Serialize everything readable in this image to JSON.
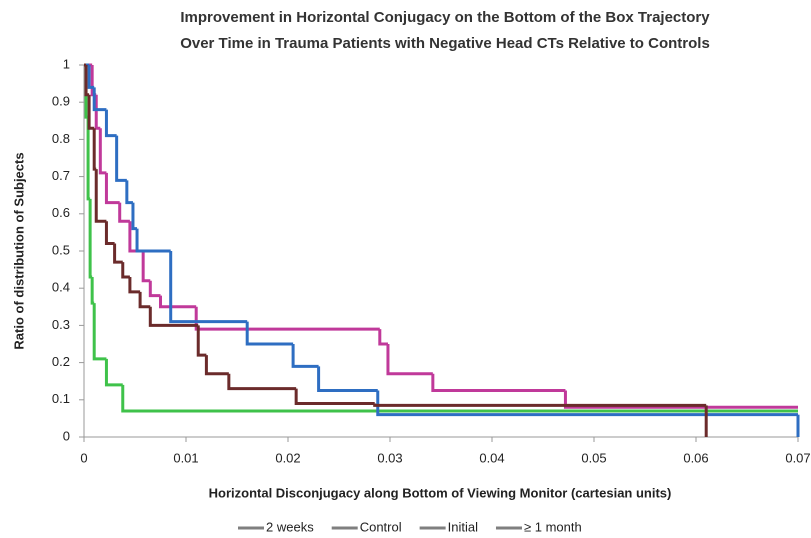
{
  "chart_data": {
    "type": "step",
    "title": [
      "Improvement in Horizontal Conjugacy on the Bottom of the Box Trajectory",
      "Over Time in Trauma Patients with Negative Head CTs Relative to Controls"
    ],
    "xlabel": "Horizontal Disconjugacy along Bottom of Viewing Monitor (cartesian units)",
    "ylabel": "Ratio of distribution of Subjects",
    "xlim": [
      0,
      0.07
    ],
    "xticks": [
      0,
      0.01,
      0.02,
      0.03,
      0.04,
      0.05,
      0.06,
      0.07
    ],
    "ylim": [
      0,
      1
    ],
    "yticks": [
      0,
      0.1,
      0.2,
      0.3,
      0.4,
      0.5,
      0.6,
      0.7,
      0.8,
      0.9,
      1
    ],
    "grid": false,
    "legend": "bottom",
    "legend_color": "#7f7f7f",
    "series": [
      {
        "name": "2 weeks",
        "color": "#c0399a",
        "x": [
          0.0002,
          0.0008,
          0.0012,
          0.0016,
          0.0022,
          0.0035,
          0.0045,
          0.0058,
          0.0065,
          0.0075,
          0.011,
          0.029,
          0.0298,
          0.0342,
          0.0472,
          0.07
        ],
        "values": [
          1,
          0.92,
          0.83,
          0.71,
          0.63,
          0.58,
          0.5,
          0.42,
          0.38,
          0.35,
          0.29,
          0.25,
          0.17,
          0.125,
          0.08,
          0.08
        ]
      },
      {
        "name": "Control",
        "color": "#3fc24a",
        "x": [
          0,
          0.0002,
          0.0004,
          0.0006,
          0.0008,
          0.001,
          0.0022,
          0.0038,
          0.07
        ],
        "values": [
          1,
          0.86,
          0.64,
          0.43,
          0.36,
          0.21,
          0.14,
          0.07,
          0.07
        ]
      },
      {
        "name": "Initial",
        "color": "#2e6ec2",
        "x": [
          0.0002,
          0.0005,
          0.001,
          0.0022,
          0.0032,
          0.0042,
          0.0048,
          0.0052,
          0.0085,
          0.016,
          0.0205,
          0.023,
          0.0288,
          0.07
        ],
        "values": [
          1,
          0.94,
          0.88,
          0.81,
          0.69,
          0.63,
          0.56,
          0.5,
          0.31,
          0.25,
          0.19,
          0.125,
          0.06,
          0
        ]
      },
      {
        "name": "≥ 1 month",
        "color": "#6b2b2b",
        "x": [
          0,
          0.0002,
          0.0005,
          0.001,
          0.0012,
          0.0022,
          0.003,
          0.0038,
          0.0045,
          0.0055,
          0.0065,
          0.0112,
          0.012,
          0.0142,
          0.0208,
          0.0285,
          0.061
        ],
        "values": [
          1,
          0.92,
          0.83,
          0.72,
          0.58,
          0.52,
          0.47,
          0.43,
          0.39,
          0.35,
          0.3,
          0.22,
          0.17,
          0.13,
          0.09,
          0.085,
          0
        ]
      }
    ]
  }
}
